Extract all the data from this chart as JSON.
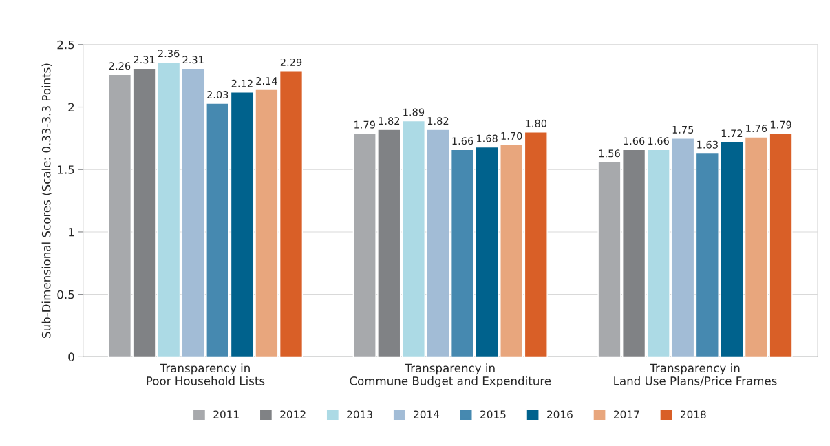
{
  "chart_data": {
    "type": "bar",
    "ylabel": "Sub-Dimensional Scores (Scale: 0.33-3.3 Points)",
    "categories": [
      "Transparency in\nPoor Household Lists",
      "Transparency in\nCommune Budget and Expenditure",
      "Transparency in\nLand Use Plans/Price Frames"
    ],
    "series": [
      {
        "name": "2011",
        "color": "#a7a9ac",
        "values": [
          2.26,
          1.79,
          1.56
        ],
        "value_labels": [
          "2.26",
          "1.79",
          "1.56"
        ]
      },
      {
        "name": "2012",
        "color": "#808285",
        "values": [
          2.31,
          1.82,
          1.66
        ],
        "value_labels": [
          "2.31",
          "1.82",
          "1.66"
        ]
      },
      {
        "name": "2013",
        "color": "#acdae5",
        "values": [
          2.36,
          1.89,
          1.66
        ],
        "value_labels": [
          "2.36",
          "1.89",
          "1.66"
        ]
      },
      {
        "name": "2014",
        "color": "#a2bcd6",
        "values": [
          2.31,
          1.82,
          1.75
        ],
        "value_labels": [
          "2.31",
          "1.82",
          "1.75"
        ]
      },
      {
        "name": "2015",
        "color": "#4689b0",
        "values": [
          2.03,
          1.66,
          1.63
        ],
        "value_labels": [
          "2.03",
          "1.66",
          "1.63"
        ]
      },
      {
        "name": "2016",
        "color": "#00628d",
        "values": [
          2.12,
          1.68,
          1.72
        ],
        "value_labels": [
          "2.12",
          "1.68",
          "1.72"
        ]
      },
      {
        "name": "2017",
        "color": "#e8a67d",
        "values": [
          2.14,
          1.7,
          1.76
        ],
        "value_labels": [
          "2.14",
          "1.70",
          "1.76"
        ]
      },
      {
        "name": "2018",
        "color": "#d95f27",
        "values": [
          2.29,
          1.8,
          1.79
        ],
        "value_labels": [
          "2.29",
          "1.80",
          "1.79"
        ]
      }
    ],
    "ylim": [
      0,
      2.5
    ],
    "yticks": [
      0,
      0.5,
      1,
      1.5,
      2,
      2.5
    ],
    "grid": "y",
    "legend": "bottom"
  }
}
